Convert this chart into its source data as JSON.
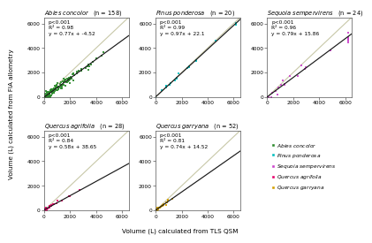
{
  "subplots": [
    {
      "title": "Abies concolor",
      "n": 158,
      "color": "#2d8b2d",
      "p_text": "p<0.001",
      "r2_text": "R² = 0.98",
      "eq": "y = 0.77x + -4.52",
      "slope": 0.77,
      "intercept": -4.52,
      "x_max": 6200,
      "x_scale": 1200,
      "noise": 180
    },
    {
      "title": "Pinus ponderosa",
      "n": 20,
      "color": "#00bfbf",
      "p_text": "p<0.001",
      "r2_text": "R² = 0.99",
      "eq": "y = 0.97x + 22.1",
      "slope": 0.97,
      "intercept": 22.1,
      "x_max": 6200,
      "x_scale": 2500,
      "noise": 80
    },
    {
      "title": "Sequoia sempervirens",
      "n": 24,
      "color": "#cc44cc",
      "p_text": "p<0.001",
      "r2_text": "R² = 0.96",
      "eq": "y = 0.79x + 15.86",
      "slope": 0.79,
      "intercept": 15.86,
      "x_max": 6200,
      "x_scale": 2800,
      "noise": 200
    },
    {
      "title": "Quercus agrifolia",
      "n": 28,
      "color": "#e8006a",
      "p_text": "p<0.001",
      "r2_text": "R² = 0.84",
      "eq": "y = 0.58x + 38.65",
      "slope": 0.58,
      "intercept": 38.65,
      "x_max": 6200,
      "x_scale": 600,
      "noise": 80
    },
    {
      "title": "Quercus garryana",
      "n": 52,
      "color": "#d4a000",
      "p_text": "p<0.001",
      "r2_text": "R² = 0.81",
      "eq": "y = 0.74x + 14.52",
      "slope": 0.74,
      "intercept": 14.52,
      "x_max": 6200,
      "x_scale": 400,
      "noise": 60
    }
  ],
  "legend_entries": [
    {
      "label": "Abies concolor",
      "color": "#2d8b2d"
    },
    {
      "label": "Pinus ponderosa",
      "color": "#00bfbf"
    },
    {
      "label": "Sequoia sempervirens",
      "color": "#cc44cc"
    },
    {
      "label": "Quercus agrifolia",
      "color": "#e8006a"
    },
    {
      "label": "Quercus garryana",
      "color": "#d4a000"
    }
  ],
  "xlabel": "Volume (L) calculated from TLS QSM",
  "ylabel": "Volume (L) calculated from FIA allometry",
  "bg_color": "#ffffff",
  "one_to_one_color": "#c8c8a8",
  "reg_line_color": "#1a1a1a",
  "tick_vals": [
    0,
    2000,
    4000,
    6000
  ],
  "xlim": [
    0,
    6500
  ],
  "ylim": [
    0,
    6500
  ]
}
